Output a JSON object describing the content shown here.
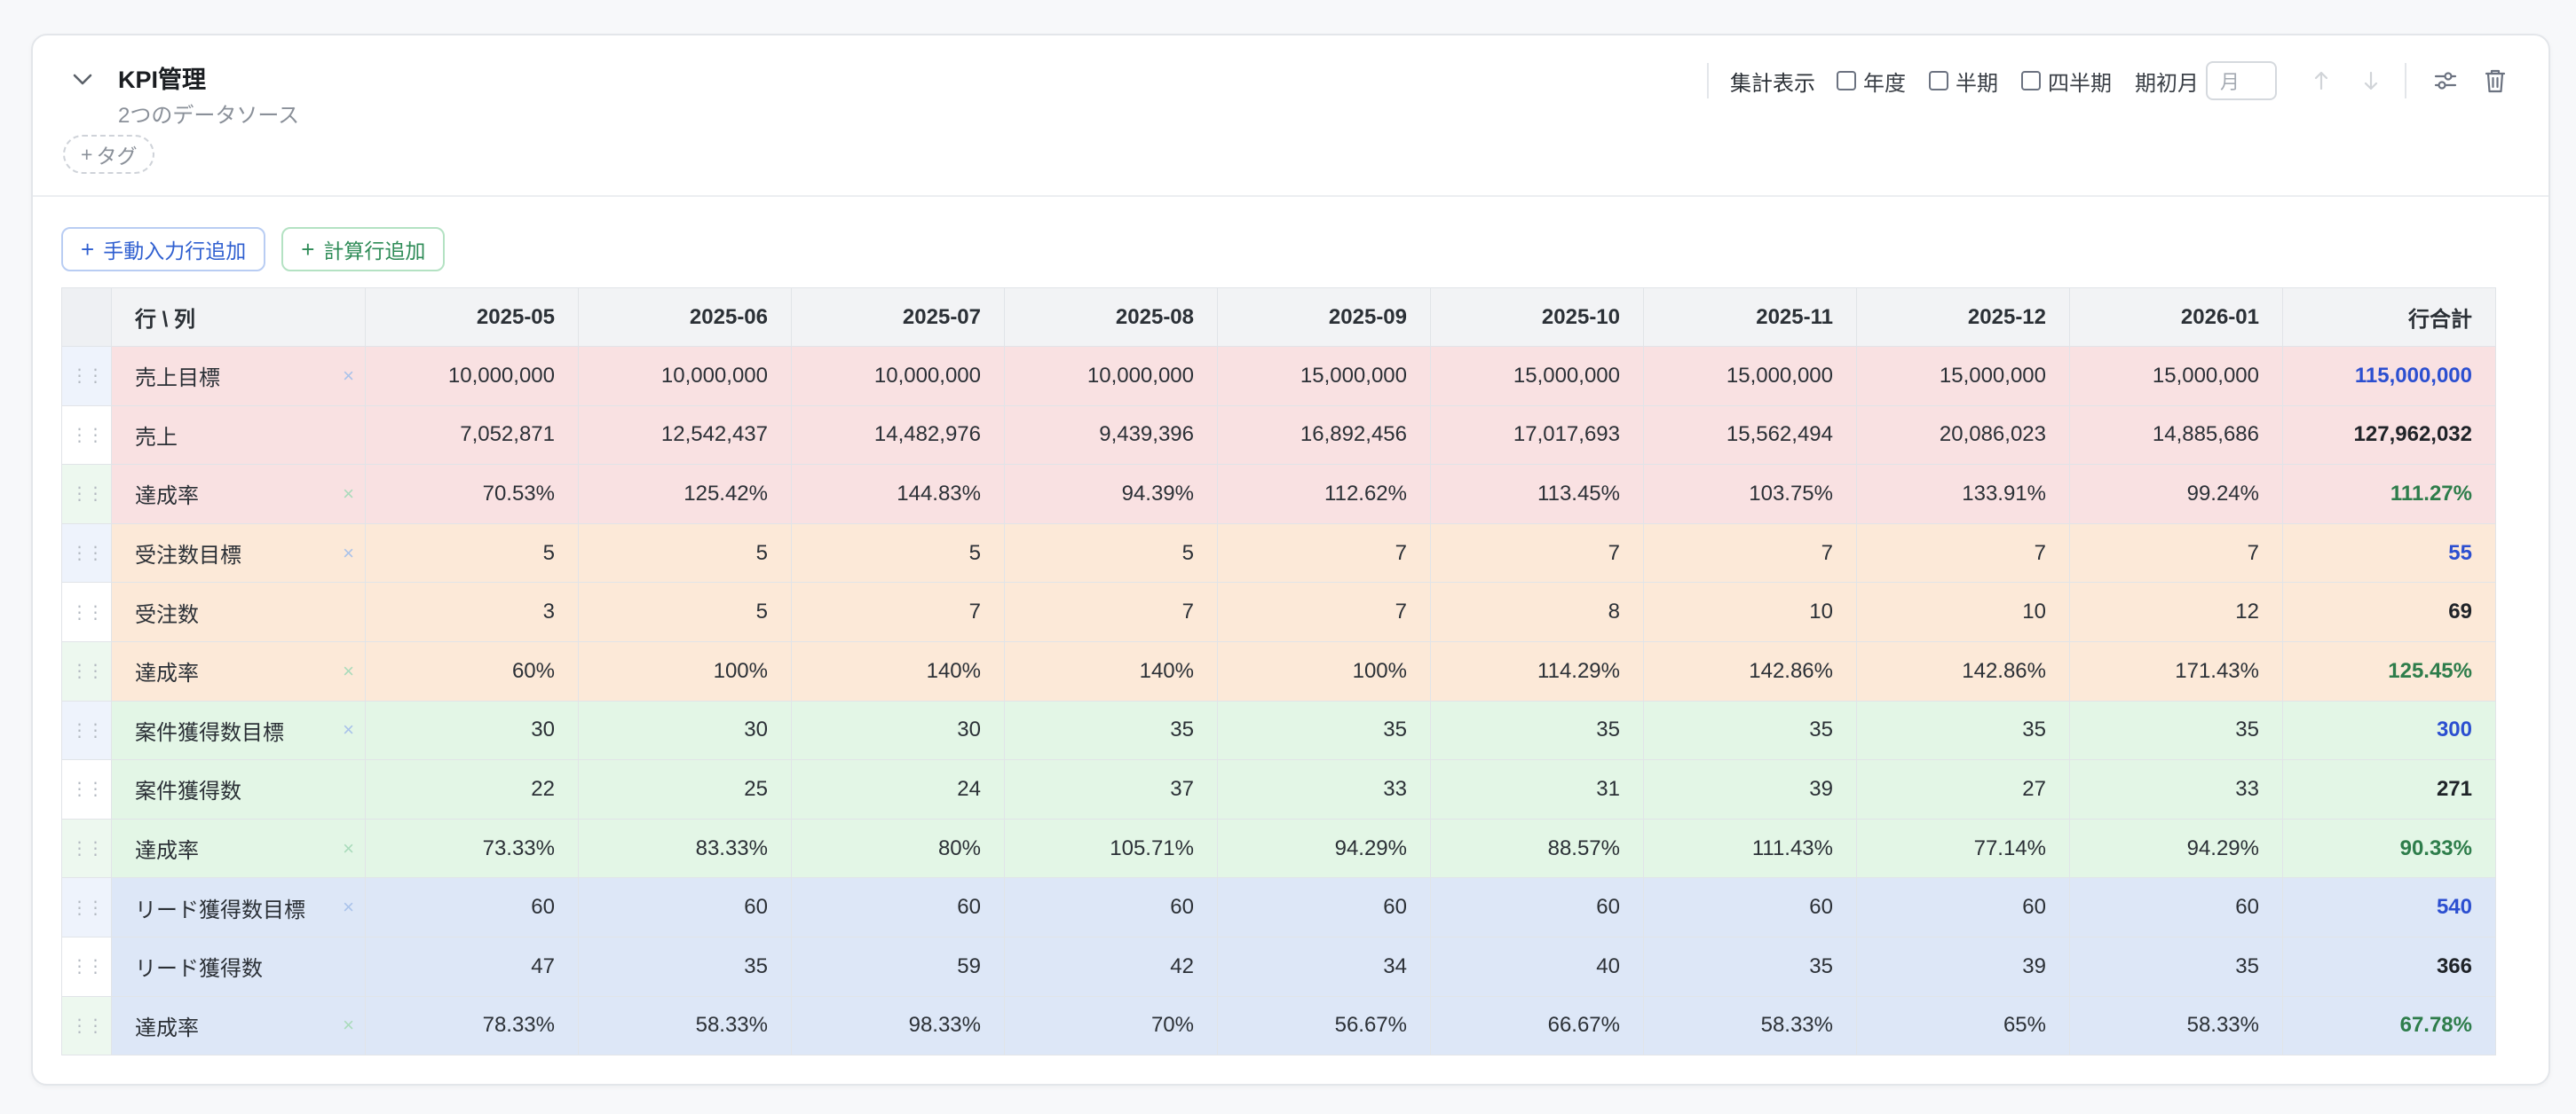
{
  "header": {
    "title": "KPI管理",
    "subtitle": "2つのデータソース",
    "tag_button": "タグ"
  },
  "controls": {
    "aggregate_label": "集計表示",
    "checkbox_year": "年度",
    "checkbox_half": "半期",
    "checkbox_quarter": "四半期",
    "start_month_label": "期初月",
    "start_month_placeholder": "月"
  },
  "actions": {
    "add_manual_row": "手動入力行追加",
    "add_calc_row": "計算行追加"
  },
  "table": {
    "corner_header": "行 \\ 列",
    "columns": [
      "2025-05",
      "2025-06",
      "2025-07",
      "2025-08",
      "2025-09",
      "2025-10",
      "2025-11",
      "2025-12",
      "2026-01"
    ],
    "total_header": "行合計",
    "rows": [
      {
        "label": "売上目標",
        "kind": "target",
        "group": "red",
        "values": [
          "10,000,000",
          "10,000,000",
          "10,000,000",
          "10,000,000",
          "15,000,000",
          "15,000,000",
          "15,000,000",
          "15,000,000",
          "15,000,000"
        ],
        "total": "115,000,000"
      },
      {
        "label": "売上",
        "kind": "actual",
        "group": "red",
        "values": [
          "7,052,871",
          "12,542,437",
          "14,482,976",
          "9,439,396",
          "16,892,456",
          "17,017,693",
          "15,562,494",
          "20,086,023",
          "14,885,686"
        ],
        "total": "127,962,032"
      },
      {
        "label": "達成率",
        "kind": "rate",
        "group": "red",
        "values": [
          "70.53%",
          "125.42%",
          "144.83%",
          "94.39%",
          "112.62%",
          "113.45%",
          "103.75%",
          "133.91%",
          "99.24%"
        ],
        "total": "111.27%"
      },
      {
        "label": "受注数目標",
        "kind": "target",
        "group": "orange",
        "values": [
          "5",
          "5",
          "5",
          "5",
          "7",
          "7",
          "7",
          "7",
          "7"
        ],
        "total": "55"
      },
      {
        "label": "受注数",
        "kind": "actual",
        "group": "orange",
        "values": [
          "3",
          "5",
          "7",
          "7",
          "7",
          "8",
          "10",
          "10",
          "12"
        ],
        "total": "69"
      },
      {
        "label": "達成率",
        "kind": "rate",
        "group": "orange",
        "values": [
          "60%",
          "100%",
          "140%",
          "140%",
          "100%",
          "114.29%",
          "142.86%",
          "142.86%",
          "171.43%"
        ],
        "total": "125.45%"
      },
      {
        "label": "案件獲得数目標",
        "kind": "target",
        "group": "green",
        "values": [
          "30",
          "30",
          "30",
          "35",
          "35",
          "35",
          "35",
          "35",
          "35"
        ],
        "total": "300"
      },
      {
        "label": "案件獲得数",
        "kind": "actual",
        "group": "green",
        "values": [
          "22",
          "25",
          "24",
          "37",
          "33",
          "31",
          "39",
          "27",
          "33"
        ],
        "total": "271"
      },
      {
        "label": "達成率",
        "kind": "rate",
        "group": "green",
        "values": [
          "73.33%",
          "83.33%",
          "80%",
          "105.71%",
          "94.29%",
          "88.57%",
          "111.43%",
          "77.14%",
          "94.29%"
        ],
        "total": "90.33%"
      },
      {
        "label": "リード獲得数目標",
        "kind": "target",
        "group": "blue",
        "values": [
          "60",
          "60",
          "60",
          "60",
          "60",
          "60",
          "60",
          "60",
          "60"
        ],
        "total": "540"
      },
      {
        "label": "リード獲得数",
        "kind": "actual",
        "group": "blue",
        "values": [
          "47",
          "35",
          "59",
          "42",
          "34",
          "40",
          "35",
          "39",
          "35"
        ],
        "total": "366"
      },
      {
        "label": "達成率",
        "kind": "rate",
        "group": "blue",
        "values": [
          "78.33%",
          "58.33%",
          "98.33%",
          "70%",
          "56.67%",
          "66.67%",
          "58.33%",
          "65%",
          "58.33%"
        ],
        "total": "67.78%"
      }
    ]
  },
  "colors": {
    "red_group": "#f9e1e2",
    "orange_group": "#fce9d8",
    "green_group": "#e3f6e6",
    "blue_group": "#dde7f7",
    "target_total": "#2c4fd0",
    "rate_total": "#2e7d4b"
  },
  "icons": {
    "collapse": "chevron-down-icon",
    "move_up": "arrow-up-icon",
    "move_down": "arrow-down-icon",
    "settings": "sliders-icon",
    "delete": "trash-icon",
    "drag": "drag-handle-icon",
    "remove": "close-icon"
  }
}
